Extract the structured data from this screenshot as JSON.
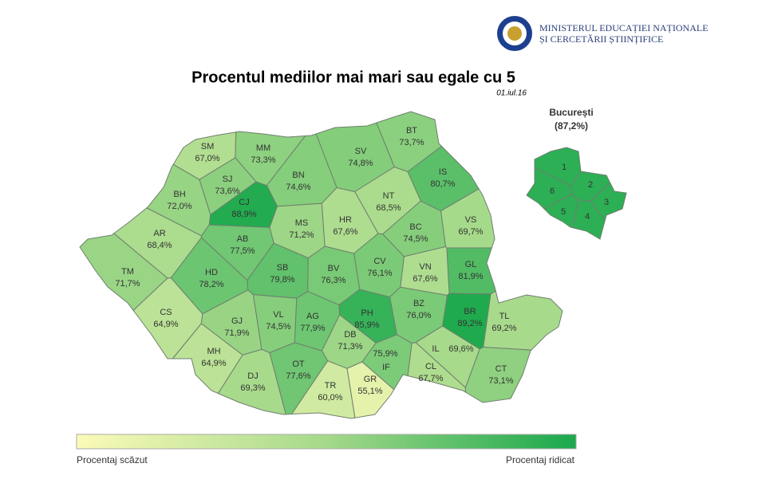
{
  "header": {
    "ministry_line1": "MINISTERUL EDUCAȚIEI NAȚIONALE",
    "ministry_line2": "ȘI CERCETĂRII ȘTIINȚIFICE"
  },
  "title": "Procentul mediilor mai mari sau egale cu 5",
  "date": "01.iul.16",
  "regions": [
    {
      "code": "BT",
      "value": 73.7,
      "label": "73,7%"
    },
    {
      "code": "SM",
      "value": 67.0,
      "label": "67,0%"
    },
    {
      "code": "MM",
      "value": 73.3,
      "label": "73,3%"
    },
    {
      "code": "SV",
      "value": 74.8,
      "label": "74,8%"
    },
    {
      "code": "BN",
      "value": 74.6,
      "label": "74,6%"
    },
    {
      "code": "SJ",
      "value": 73.6,
      "label": "73,6%"
    },
    {
      "code": "IS",
      "value": 80.7,
      "label": "80,7%"
    },
    {
      "code": "BH",
      "value": 72.0,
      "label": "72,0%"
    },
    {
      "code": "CJ",
      "value": 88.9,
      "label": "88,9%"
    },
    {
      "code": "NT",
      "value": 68.5,
      "label": "68,5%"
    },
    {
      "code": "VS",
      "value": 69.7,
      "label": "69,7%"
    },
    {
      "code": "MS",
      "value": 71.2,
      "label": "71,2%"
    },
    {
      "code": "HR",
      "value": 67.6,
      "label": "67,6%"
    },
    {
      "code": "BC",
      "value": 74.5,
      "label": "74,5%"
    },
    {
      "code": "AR",
      "value": 68.4,
      "label": "68,4%"
    },
    {
      "code": "AB",
      "value": 77.5,
      "label": "77,5%"
    },
    {
      "code": "GL",
      "value": 81.9,
      "label": "81,9%"
    },
    {
      "code": "CV",
      "value": 76.1,
      "label": "76,1%"
    },
    {
      "code": "VN",
      "value": 67.6,
      "label": "67,6%"
    },
    {
      "code": "TM",
      "value": 71.7,
      "label": "71,7%"
    },
    {
      "code": "HD",
      "value": 78.2,
      "label": "78,2%"
    },
    {
      "code": "SB",
      "value": 79.8,
      "label": "79,8%"
    },
    {
      "code": "BV",
      "value": 76.3,
      "label": "76,3%"
    },
    {
      "code": "BR",
      "value": 89.2,
      "label": "89,2%"
    },
    {
      "code": "BZ",
      "value": 76.0,
      "label": "76,0%"
    },
    {
      "code": "PH",
      "value": 85.9,
      "label": "85,9%"
    },
    {
      "code": "TL",
      "value": 69.2,
      "label": "69,2%"
    },
    {
      "code": "CS",
      "value": 64.9,
      "label": "64,9%"
    },
    {
      "code": "GJ",
      "value": 71.9,
      "label": "71,9%"
    },
    {
      "code": "VL",
      "value": 74.5,
      "label": "74,5%"
    },
    {
      "code": "AG",
      "value": 77.9,
      "label": "77,9%"
    },
    {
      "code": "DB",
      "value": 71.3,
      "label": "71,3%"
    },
    {
      "code": "IL",
      "value": 69.6,
      "label": "69,6%"
    },
    {
      "code": "MH",
      "value": 64.9,
      "label": "64,9%"
    },
    {
      "code": "CT",
      "value": 73.1,
      "label": "73,1%"
    },
    {
      "code": "CL",
      "value": 67.7,
      "label": "67,7%"
    },
    {
      "code": "IF",
      "value": 75.9,
      "label": "75,9%"
    },
    {
      "code": "OT",
      "value": 77.6,
      "label": "77,6%"
    },
    {
      "code": "DJ",
      "value": 69.3,
      "label": "69,3%"
    },
    {
      "code": "TR",
      "value": 60.0,
      "label": "60,0%"
    },
    {
      "code": "GR",
      "value": 55.1,
      "label": "55,1%"
    }
  ],
  "bucharest": {
    "name": "București",
    "value": 87.2,
    "label": "(87,2%)",
    "sectors": [
      "1",
      "2",
      "3",
      "4",
      "5",
      "6"
    ]
  },
  "legend": {
    "low": "Procentaj scăzut",
    "high": "Procentaj ridicat"
  }
}
